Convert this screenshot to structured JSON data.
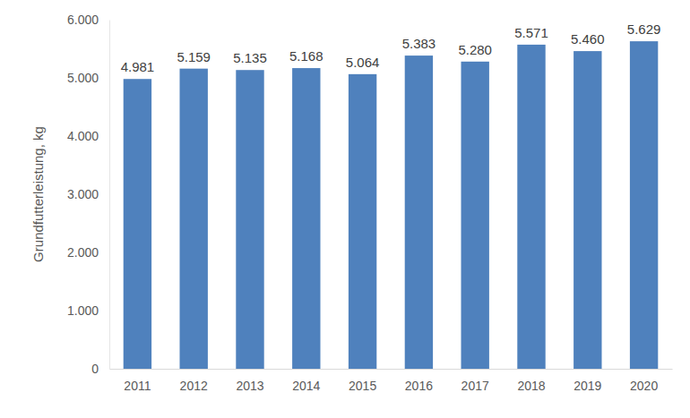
{
  "chart_data": {
    "type": "bar",
    "y_label": "Grundfutterleistung, kg",
    "categories": [
      "2011",
      "2012",
      "2013",
      "2014",
      "2015",
      "2016",
      "2017",
      "2018",
      "2019",
      "2020"
    ],
    "values": [
      4981,
      5159,
      5135,
      5168,
      5064,
      5383,
      5280,
      5571,
      5460,
      5629
    ],
    "value_labels": [
      "4.981",
      "5.159",
      "5.135",
      "5.168",
      "5.064",
      "5.383",
      "5.280",
      "5.571",
      "5.460",
      "5.629"
    ],
    "color": "#4f81bd",
    "ylim": [
      0,
      6000
    ],
    "yticks": [
      0,
      {
        "value": 1000,
        "label": "1.000"
      },
      {
        "value": 2000,
        "label": "2.000"
      },
      {
        "value": 3000,
        "label": "3.000"
      },
      {
        "value": 4000,
        "label": "4.000"
      },
      {
        "value": 5000,
        "label": "5.000"
      },
      {
        "value": 6000,
        "label": "6.000"
      }
    ],
    "grid": false,
    "data_labels": true
  }
}
